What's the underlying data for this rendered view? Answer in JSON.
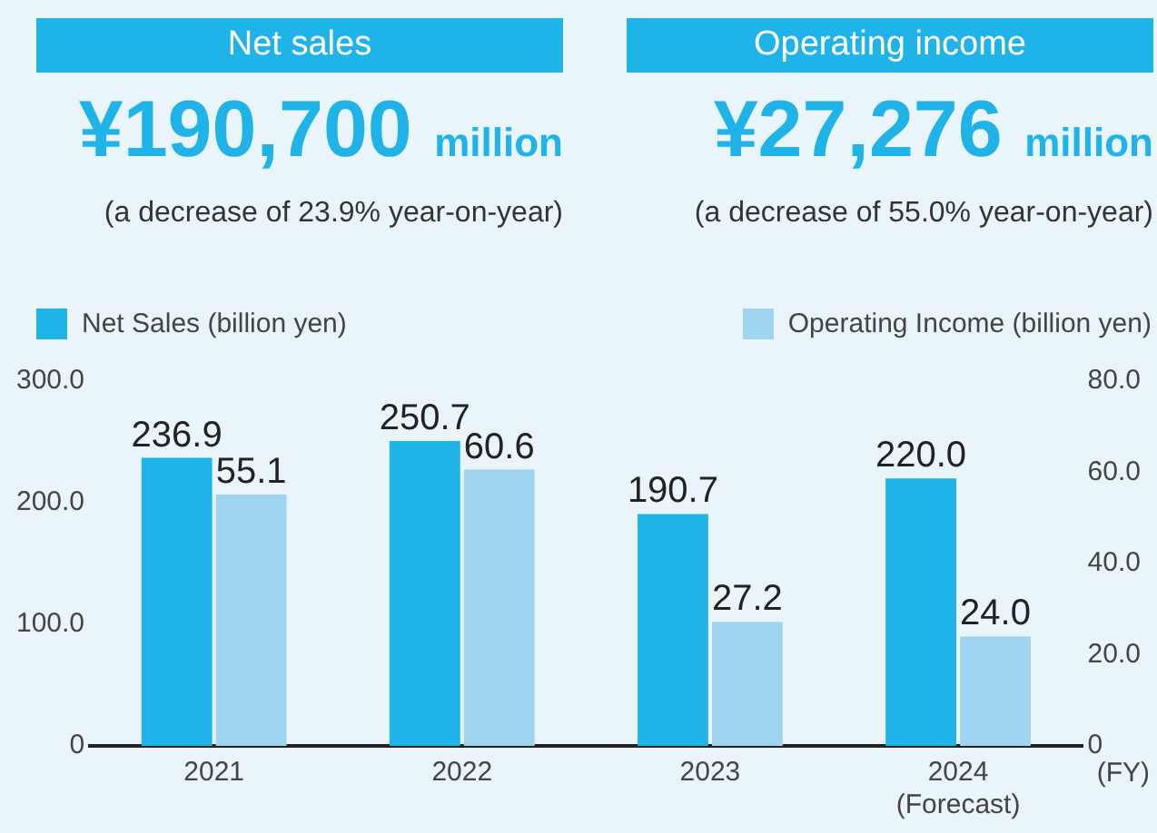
{
  "chart_data": {
    "type": "bar",
    "annotations": [
      "Net sales",
      "¥190,700 million",
      "(a decrease of 23.9% year-on-year)",
      "Operating income",
      "¥27,276 million",
      "(a decrease of 55.0% year-on-year)"
    ],
    "xlabel": "(FY)",
    "categories": [
      "2021",
      "2022",
      "2023",
      "2024\n(Forecast)"
    ],
    "series": [
      {
        "name": "Net Sales (billion yen)",
        "color": "#1fb3e8",
        "values": [
          236.9,
          250.7,
          190.7,
          220.0
        ],
        "value_labels": [
          "236.9",
          "250.7",
          "190.7",
          "220.0"
        ]
      },
      {
        "name": "Operating Income (billion yen)",
        "color": "#a0d5f2",
        "values": [
          55.1,
          60.6,
          27.2,
          24.0
        ],
        "value_labels": [
          "55.1",
          "60.6",
          "27.2",
          "24.0"
        ],
        "axis": "y2"
      }
    ],
    "ylim": [
      0,
      300
    ],
    "yticks": [
      0,
      {
        "value": 100,
        "label": "100.0"
      },
      {
        "value": 200,
        "label": "200.0"
      },
      {
        "value": 300,
        "label": "300.0"
      }
    ],
    "y2lim": [
      0,
      80
    ],
    "y2ticks": [
      0,
      {
        "value": 20,
        "label": "20.0"
      },
      {
        "value": 40,
        "label": "40.0"
      },
      {
        "value": 60,
        "label": "60.0"
      },
      {
        "value": 80,
        "label": "80.0"
      }
    ],
    "grid": false,
    "legend": "top"
  }
}
